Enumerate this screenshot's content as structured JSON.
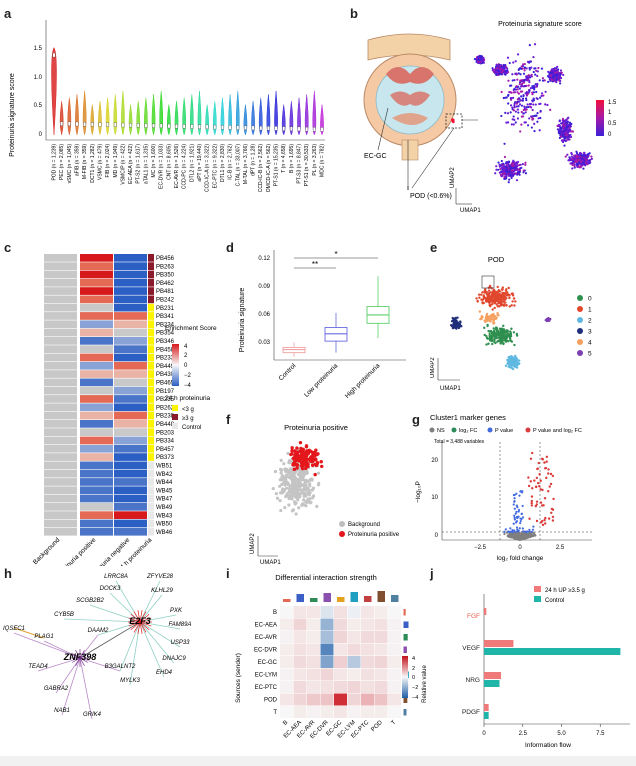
{
  "panels": {
    "a": "a",
    "b": "b",
    "c": "c",
    "d": "d",
    "e": "e",
    "f": "f",
    "g": "g",
    "h": "h",
    "i": "i",
    "j": "j"
  },
  "panel_a": {
    "ylabel": "Proteinuria signature score",
    "yticks": [
      "1.5",
      "1.0",
      "0.5",
      "0"
    ],
    "categories": [
      "POD (n = 1,239)",
      "PEC (n = 2,085)",
      "vSMC (n = 1,045)",
      "aFIB (n = 359)",
      "M-FIB (n = 359)",
      "DCT1 (n = 1,282)",
      "VSMC (n = 479)",
      "FIB (n = 2,024)",
      "MD (n = 1,949)",
      "VSMC/P (n = 422)",
      "EC-AEA (n = 422)",
      "PT-S2 (n = 1,617)",
      "aTAL1 (n = 1,315)",
      "MC (n = 1,600)",
      "EC-DVR (n = 1,033)",
      "CNT (n = 8,605)",
      "EC-AVR (n = 1,526)",
      "CCD-PC (n = 4,224)",
      "DTL2 (n = 1,921)",
      "aPT (n = 19,440)",
      "CCD-IC-A (n = 3,322)",
      "EC-PTC (n = 9,322)",
      "DTL1 (n = 2,830)",
      "IC-B (n = 2,762)",
      "C-TAL (n = 33,007)",
      "M-TAL (n = 3,766)",
      "dPT (n = 1,28)",
      "CCD-IC-B (n = 2,562)",
      "OMCD-IC-A (n = 562)",
      "PT-S1 (n = 15,235)",
      "T (n = 4,658)",
      "B (n = 1,695)",
      "PT-S3 (n = 8,847)",
      "PT-S1 (n = 30,533)",
      "PL (n = 3,263)",
      "MDC (n = 782)"
    ]
  },
  "panel_b": {
    "title": "Proteinuria signature score",
    "label_ecgc": "EC-GC",
    "label_pod": "POD (<0.6%)",
    "umap1": "UMAP1",
    "umap2": "UMAP2",
    "legend": [
      "1.5",
      "1",
      "0.5",
      "0"
    ]
  },
  "panel_c": {
    "samples": [
      "PB456",
      "PB263",
      "PB350",
      "PB462",
      "PB481",
      "PB242",
      "PB231",
      "PB341",
      "PB234",
      "PB354",
      "PB346",
      "PB458",
      "PB233",
      "PB449",
      "PB430",
      "PB465",
      "PB197",
      "PB235",
      "PB262",
      "PB238",
      "PB448",
      "PB203",
      "PB334",
      "PB457",
      "PB373",
      "WB51",
      "WB42",
      "WB44",
      "WB45",
      "WB47",
      "WB49",
      "WB43",
      "WB50",
      "WB46"
    ],
    "xlabels": [
      "Background",
      "Proteinuria positive",
      "Proteinuria negative",
      "24 h proteinuria"
    ],
    "legend_title": "Enrichment Score",
    "legend_ticks": [
      "4",
      "2",
      "0",
      "−2",
      "−4"
    ],
    "prot_title": "24 h proteinuria",
    "prot_items": [
      "<3 g",
      "≥3 g",
      "Control"
    ]
  },
  "panel_d": {
    "ylabel": "Proteinuria signature",
    "yticks": [
      "0.12",
      "0.09",
      "0.06",
      "0.03"
    ],
    "groups": [
      "Control",
      "Low proteinuria",
      "High proteinuria"
    ],
    "sig1": "**",
    "sig2": "*"
  },
  "panel_e": {
    "title": "POD",
    "clusters": [
      "0",
      "1",
      "2",
      "3",
      "4",
      "5"
    ],
    "umap1": "UMAP1",
    "umap2": "UMAP2"
  },
  "panel_f": {
    "title": "Proteinuria positive",
    "legend": [
      "Background",
      "Proteinuria positive"
    ],
    "umap1": "UMAP1",
    "umap2": "UMAP2"
  },
  "panel_g": {
    "title": "Cluster1 marker genes",
    "legend": [
      "NS",
      "log₂ FC",
      "P value",
      "P value and log₂ FC"
    ],
    "total": "Total = 3,488 variables",
    "xlabel": "log₂ fold change",
    "ylabel": "−log₁₀P",
    "xticks": [
      "−2.5",
      "0",
      "2.5"
    ],
    "yticks": [
      "0",
      "10",
      "20"
    ]
  },
  "panel_h": {
    "hubs": [
      "E2F3",
      "ZNF398"
    ],
    "genes": [
      "LRRC8A",
      "ZFYVE28",
      "DOCK3",
      "KLHL29",
      "SCGB2B2",
      "CYB5B",
      "PXK",
      "FAM89A",
      "USP33",
      "DAAM2",
      "DNAJC9",
      "EHD4",
      "B3GALNT2",
      "MYLK3",
      "IQSEC1",
      "PLAG1",
      "TEAD4",
      "GABRA2",
      "NAB1",
      "GRIK4"
    ]
  },
  "panel_i": {
    "title": "Differential interaction strength",
    "rows": [
      "B",
      "EC-AEA",
      "EC-AVR",
      "EC-DVR",
      "EC-GC",
      "EC-LYM",
      "EC-PTC",
      "POD",
      "T"
    ],
    "cols": [
      "B",
      "EC-AEA",
      "EC-AVR",
      "EC-DVR",
      "EC-GC",
      "EC-LYM",
      "EC-PTC",
      "POD",
      "T"
    ],
    "ylabel": "Sources (sender)",
    "legend_title": "Relative value",
    "legend_ticks": [
      "4",
      "2",
      "0",
      "−2",
      "−4"
    ]
  },
  "panel_j": {
    "legend": [
      "24 h UP ≥3.5 g",
      "Control"
    ],
    "categories": [
      "FGF",
      "VEGF",
      "NRG",
      "PDGF"
    ],
    "xlabel": "Information flow",
    "xticks": [
      "0",
      "2.5",
      "5.0",
      "7.5"
    ]
  },
  "chart_data": [
    {
      "type": "bar",
      "title": "",
      "categories": [
        "FGF",
        "VEGF",
        "NRG",
        "PDGF"
      ],
      "xlabel": "Information flow",
      "series": [
        {
          "name": "24 h UP ≥3.5 g",
          "values": [
            0.15,
            1.9,
            1.1,
            0.3
          ]
        },
        {
          "name": "Control",
          "values": [
            0.0,
            8.8,
            1.0,
            0.3
          ]
        }
      ],
      "xlim": [
        0,
        9
      ]
    },
    {
      "type": "box",
      "categories": [
        "Control",
        "Low proteinuria",
        "High proteinuria"
      ],
      "ylabel": "Proteinuria signature",
      "ylim": [
        0.015,
        0.12
      ],
      "boxes": [
        {
          "q1": 0.022,
          "median": 0.025,
          "q3": 0.027,
          "lo": 0.018,
          "hi": 0.032
        },
        {
          "q1": 0.033,
          "median": 0.04,
          "q3": 0.046,
          "lo": 0.022,
          "hi": 0.06
        },
        {
          "q1": 0.05,
          "median": 0.058,
          "q3": 0.066,
          "lo": 0.036,
          "hi": 0.095
        }
      ]
    }
  ]
}
